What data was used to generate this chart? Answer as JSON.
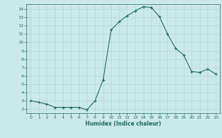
{
  "x": [
    0,
    1,
    2,
    3,
    4,
    5,
    6,
    7,
    8,
    9,
    10,
    11,
    12,
    13,
    14,
    15,
    16,
    17,
    18,
    19,
    20,
    21,
    22,
    23
  ],
  "y": [
    3.0,
    2.8,
    2.6,
    2.2,
    2.2,
    2.2,
    2.2,
    1.9,
    3.0,
    5.5,
    11.5,
    12.5,
    13.2,
    13.8,
    14.3,
    14.2,
    13.1,
    11.0,
    9.3,
    8.5,
    6.5,
    6.4,
    6.8,
    6.2
  ],
  "line_color": "#1a6b60",
  "marker_color": "#1a6b60",
  "bg_color": "#cce9ea",
  "grid_color": "#b0d4d6",
  "xlabel": "Humidex (Indice chaleur)",
  "ylim": [
    1.5,
    14.6
  ],
  "xlim": [
    -0.5,
    23.5
  ],
  "yticks": [
    2,
    3,
    4,
    5,
    6,
    7,
    8,
    9,
    10,
    11,
    12,
    13,
    14
  ],
  "xticks": [
    0,
    1,
    2,
    3,
    4,
    5,
    6,
    7,
    8,
    9,
    10,
    11,
    12,
    13,
    14,
    15,
    16,
    17,
    18,
    19,
    20,
    21,
    22,
    23
  ]
}
